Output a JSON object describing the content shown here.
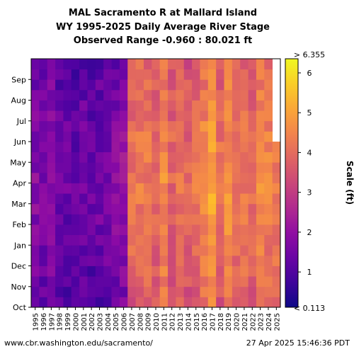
{
  "title_lines": [
    "MAL Sacramento R at Mallard Island",
    "WY 1995-2025 Daily Average River Stage",
    "Observed Range -0.960 : 80.021 ft"
  ],
  "footer": {
    "url": "www.cbr.washington.edu/sacramento/",
    "timestamp": "27 Apr 2025 15:46:36 PDT"
  },
  "chart_data": {
    "type": "heatmap",
    "title": "MAL Sacramento R at Mallard Island",
    "subtitle": "WY 1995-2025 Daily Average River Stage",
    "range_text": "Observed Range -0.960 : 80.021 ft",
    "x_categories": [
      "1995",
      "1996",
      "1997",
      "1998",
      "1999",
      "2000",
      "2001",
      "2002",
      "2003",
      "2004",
      "2005",
      "2006",
      "2007",
      "2008",
      "2009",
      "2010",
      "2011",
      "2012",
      "2013",
      "2014",
      "2015",
      "2016",
      "2017",
      "2018",
      "2019",
      "2020",
      "2021",
      "2022",
      "2023",
      "2024",
      "2025"
    ],
    "y_ticks": [
      "Oct",
      "Nov",
      "Dec",
      "Jan",
      "Feb",
      "Mar",
      "Apr",
      "May",
      "Jun",
      "Jul",
      "Aug",
      "Sep"
    ],
    "colorbar": {
      "label": "Scale (ft)",
      "min": 0.113,
      "max": 6.355,
      "top_label": "> 6.355",
      "bottom_label": "< 0.113",
      "ticks": [
        1,
        2,
        3,
        4,
        5,
        6
      ],
      "colormap": "plasma"
    },
    "yearly_mean_stage_ft": [
      1.3,
      1.2,
      1.5,
      1.0,
      0.9,
      0.8,
      1.0,
      0.9,
      1.0,
      1.1,
      1.3,
      1.6,
      3.6,
      3.8,
      3.7,
      3.5,
      4.1,
      3.4,
      3.6,
      3.4,
      3.7,
      4.0,
      4.6,
      3.6,
      4.2,
      3.8,
      3.8,
      3.6,
      4.1,
      3.9,
      3.8
    ],
    "last_observed_month": "May"
  }
}
